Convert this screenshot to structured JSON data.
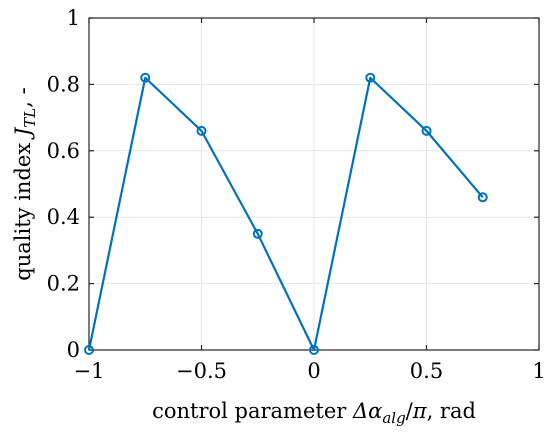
{
  "chart_data": {
    "type": "line",
    "title": "",
    "xlabel": {
      "before": "control parameter ",
      "symbol": "Δα",
      "subscript": "alg",
      "mid": "/",
      "pi": "π",
      "after": ", rad"
    },
    "ylabel": {
      "before": "quality index ",
      "symbol": "J",
      "subscript": "TL",
      "after": ", -"
    },
    "xlim": [
      -1,
      1
    ],
    "ylim": [
      0,
      1
    ],
    "grid": true,
    "xticks": [
      -1,
      -0.5,
      0,
      0.5,
      1
    ],
    "xtick_labels": [
      "−1",
      "−0.5",
      "0",
      "0.5",
      "1"
    ],
    "yticks": [
      0,
      0.2,
      0.4,
      0.6,
      0.8,
      1
    ],
    "ytick_labels": [
      "0",
      "0.2",
      "0.4",
      "0.6",
      "0.8",
      "1"
    ],
    "series": [
      {
        "x": [
          -1,
          -0.75,
          -0.5,
          -0.25,
          0,
          0.25,
          0.5,
          0.75
        ],
        "y": [
          0,
          0.82,
          0.66,
          0.35,
          0,
          0.82,
          0.66,
          0.46
        ],
        "color": "#0072BD",
        "marker": "circle"
      }
    ]
  }
}
